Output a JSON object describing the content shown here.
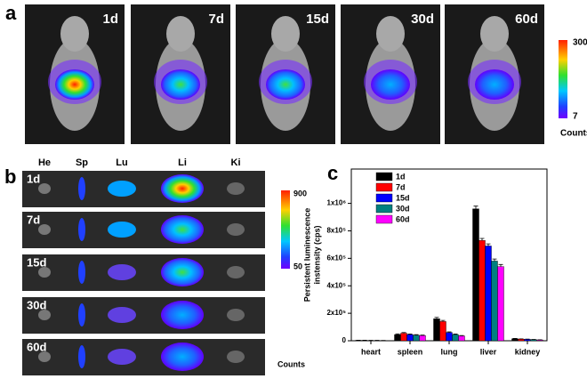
{
  "panel_a": {
    "label": "a",
    "days": [
      "1d",
      "7d",
      "15d",
      "30d",
      "60d"
    ],
    "colorbar": {
      "max": 300,
      "min": 7,
      "unit": "Counts"
    }
  },
  "panel_b": {
    "label": "b",
    "organs": [
      "He",
      "Sp",
      "Lu",
      "Li",
      "Ki"
    ],
    "days": [
      "1d",
      "7d",
      "15d",
      "30d",
      "60d"
    ],
    "colorbar": {
      "max": 900,
      "min": 50,
      "unit": "Counts"
    }
  },
  "panel_c": {
    "label": "c"
  },
  "chart_data": {
    "type": "bar",
    "ylabel": [
      "Persistent luminescence",
      "instensity (cps)"
    ],
    "categories": [
      "heart",
      "spleen",
      "lung",
      "liver",
      "kidney"
    ],
    "series": [
      {
        "name": "1d",
        "color": "#000000",
        "values": [
          3000,
          45000,
          160000,
          960000,
          15000
        ],
        "errors": [
          1000,
          5000,
          10000,
          20000,
          2000
        ]
      },
      {
        "name": "7d",
        "color": "#ff0000",
        "values": [
          2500,
          55000,
          140000,
          730000,
          12000
        ],
        "errors": [
          1000,
          5000,
          8000,
          15000,
          2000
        ]
      },
      {
        "name": "15d",
        "color": "#0000ff",
        "values": [
          2000,
          45000,
          60000,
          690000,
          10000
        ],
        "errors": [
          1000,
          4000,
          5000,
          15000,
          2000
        ]
      },
      {
        "name": "30d",
        "color": "#008080",
        "values": [
          2000,
          40000,
          45000,
          580000,
          8000
        ],
        "errors": [
          1000,
          4000,
          4000,
          15000,
          1500
        ]
      },
      {
        "name": "60d",
        "color": "#ff00ff",
        "values": [
          1500,
          38000,
          35000,
          540000,
          6000
        ],
        "errors": [
          1000,
          3000,
          3000,
          15000,
          1500
        ]
      }
    ],
    "ylim": [
      0,
      1250000
    ],
    "yticks": [
      0,
      {
        "value": 200000,
        "label": "2x10⁵"
      },
      {
        "value": 400000,
        "label": "4x10⁵"
      },
      {
        "value": 600000,
        "label": "6x10⁵"
      },
      {
        "value": 800000,
        "label": "8x10⁵"
      },
      {
        "value": 1000000,
        "label": "1x10⁶"
      }
    ],
    "legend": "upper-left"
  }
}
